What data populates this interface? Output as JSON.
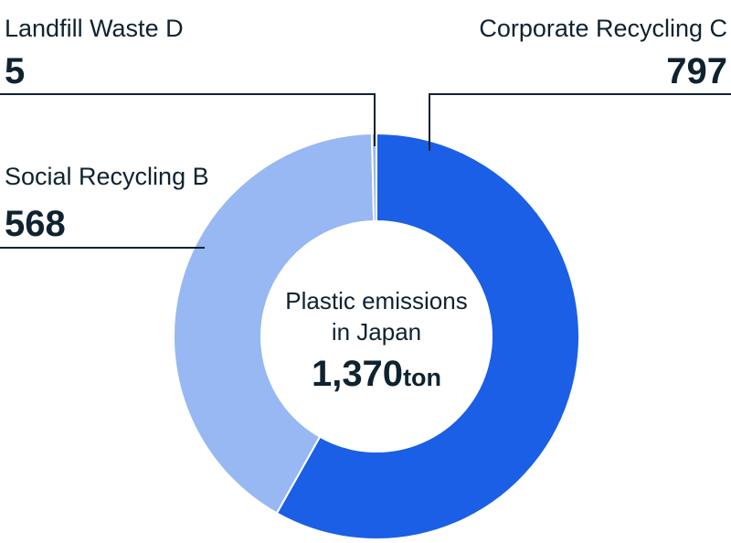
{
  "chart_data": {
    "type": "pie",
    "variant": "donut",
    "center": {
      "title_line1": "Plastic emissions",
      "title_line2": "in Japan",
      "total_value": "1,370",
      "total_unit": "ton"
    },
    "slices": [
      {
        "label": "Corporate Recycling C",
        "value": 797,
        "display": "797",
        "color": "#1a5fe6"
      },
      {
        "label": "Social Recycling B",
        "value": 568,
        "display": "568",
        "color": "#97b8f2"
      },
      {
        "label": "Landfill Waste D",
        "value": 5,
        "display": "5",
        "color": "#97b8f2"
      }
    ]
  }
}
